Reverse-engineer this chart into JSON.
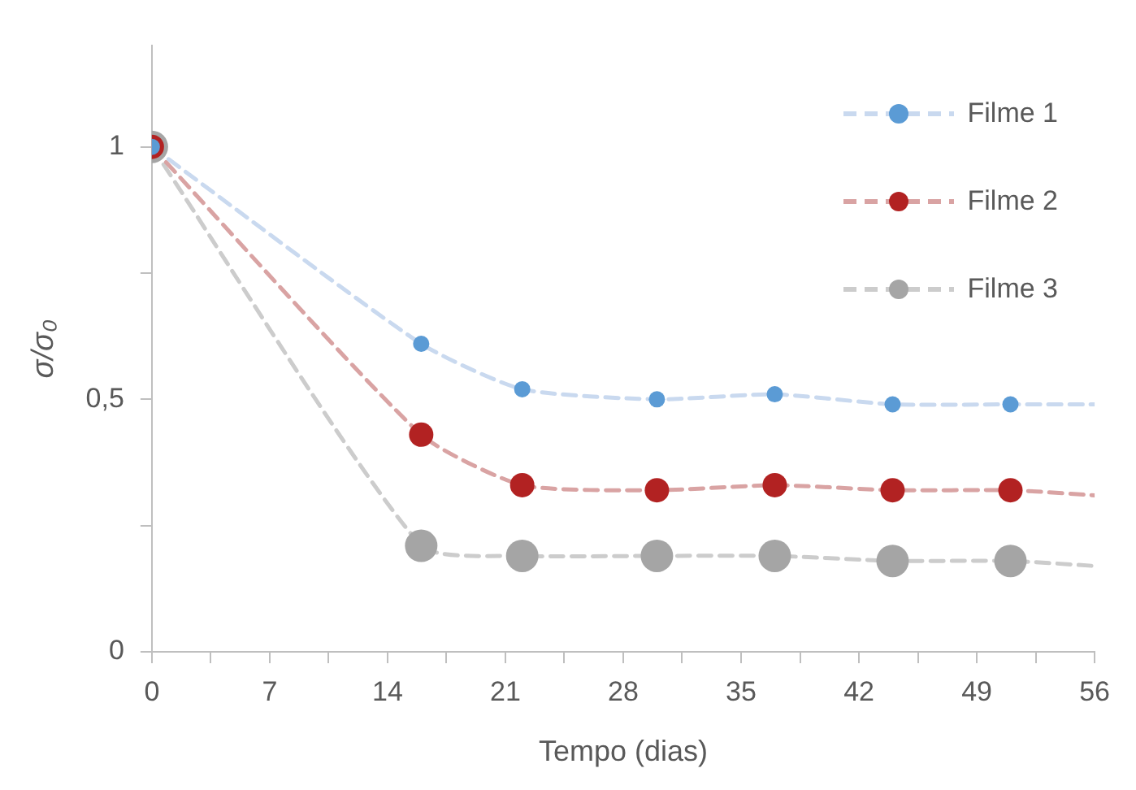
{
  "chart_data": {
    "type": "line",
    "xlabel": "Tempo (dias)",
    "ylabel": "σ/σ₀",
    "xlim": [
      0,
      56
    ],
    "xticks": [
      0,
      {
        "value": 3.5,
        "label": null
      },
      7,
      {
        "value": 10.5,
        "label": null
      },
      14,
      {
        "value": 17.5,
        "label": null
      },
      21,
      {
        "value": 24.5,
        "label": null
      },
      28,
      {
        "value": 31.5,
        "label": null
      },
      35,
      {
        "value": 38.5,
        "label": null
      },
      42,
      {
        "value": 45.5,
        "label": null
      },
      49,
      {
        "value": 52.5,
        "label": null
      },
      56
    ],
    "ylim": [
      0,
      1.2
    ],
    "yticks": [
      0,
      {
        "value": 0.25,
        "label": null
      },
      {
        "value": 0.5,
        "label": "0,5"
      },
      {
        "value": 0.75,
        "label": null
      },
      1
    ],
    "grid": false,
    "legend": "top right",
    "series": [
      {
        "type": "line",
        "color": "#c9d9ef",
        "line_style": "dashed",
        "marker": "none",
        "x": [
          0,
          16,
          22,
          30,
          37,
          44,
          51,
          56
        ],
        "values": [
          1,
          0.61,
          0.52,
          0.5,
          0.51,
          0.49,
          0.49,
          0.49
        ]
      },
      {
        "type": "line",
        "color": "#d9a3a3",
        "line_style": "dashed",
        "marker": "none",
        "x": [
          0,
          16,
          22,
          30,
          37,
          44,
          51,
          56
        ],
        "values": [
          1,
          0.43,
          0.33,
          0.32,
          0.33,
          0.32,
          0.32,
          0.31
        ]
      },
      {
        "type": "line",
        "color": "#cccccc",
        "line_style": "dashed",
        "marker": "none",
        "x": [
          0,
          16,
          22,
          30,
          37,
          44,
          51,
          56
        ],
        "values": [
          1,
          0.21,
          0.19,
          0.19,
          0.19,
          0.18,
          0.18,
          0.17
        ]
      },
      {
        "type": "scatter",
        "name": "Filme 1",
        "color": "#5b9bd5",
        "marker": "circle",
        "x": [
          0,
          16,
          22,
          30,
          37,
          44,
          51
        ],
        "values": [
          1,
          0.61,
          0.52,
          0.5,
          0.51,
          0.49,
          0.49
        ]
      },
      {
        "type": "scatter",
        "name": "Filme 2",
        "color": "#b22222",
        "marker": "circle",
        "x": [
          0,
          16,
          22,
          30,
          37,
          44,
          51
        ],
        "values": [
          1,
          0.43,
          0.33,
          0.32,
          0.33,
          0.32,
          0.32
        ]
      },
      {
        "type": "scatter",
        "name": "Filme 3",
        "color": "#a5a5a5",
        "marker": "circle",
        "x": [
          0,
          16,
          22,
          30,
          37,
          44,
          51
        ],
        "values": [
          1,
          0.21,
          0.19,
          0.19,
          0.19,
          0.18,
          0.18
        ]
      }
    ]
  }
}
